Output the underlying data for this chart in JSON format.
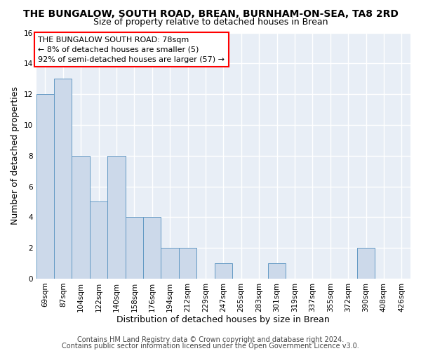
{
  "title": "THE BUNGALOW, SOUTH ROAD, BREAN, BURNHAM-ON-SEA, TA8 2RD",
  "subtitle": "Size of property relative to detached houses in Brean",
  "xlabel": "Distribution of detached houses by size in Brean",
  "ylabel": "Number of detached properties",
  "categories": [
    "69sqm",
    "87sqm",
    "104sqm",
    "122sqm",
    "140sqm",
    "158sqm",
    "176sqm",
    "194sqm",
    "212sqm",
    "229sqm",
    "247sqm",
    "265sqm",
    "283sqm",
    "301sqm",
    "319sqm",
    "337sqm",
    "355sqm",
    "372sqm",
    "390sqm",
    "408sqm",
    "426sqm"
  ],
  "values": [
    12,
    13,
    8,
    5,
    8,
    4,
    4,
    2,
    2,
    0,
    1,
    0,
    0,
    1,
    0,
    0,
    0,
    0,
    2,
    0,
    0
  ],
  "bar_color": "#ccd9ea",
  "bar_edge_color": "#6399c4",
  "ylim": [
    0,
    16
  ],
  "yticks": [
    0,
    2,
    4,
    6,
    8,
    10,
    12,
    14,
    16
  ],
  "annotation_line1": "THE BUNGALOW SOUTH ROAD: 78sqm",
  "annotation_line2": "← 8% of detached houses are smaller (5)",
  "annotation_line3": "92% of semi-detached houses are larger (57) →",
  "footer1": "Contains HM Land Registry data © Crown copyright and database right 2024.",
  "footer2": "Contains public sector information licensed under the Open Government Licence v3.0.",
  "bg_color": "#e8eef6",
  "grid_color": "#ffffff",
  "title_fontsize": 10,
  "subtitle_fontsize": 9,
  "axis_label_fontsize": 9,
  "tick_fontsize": 7.5,
  "annotation_fontsize": 8,
  "footer_fontsize": 7
}
